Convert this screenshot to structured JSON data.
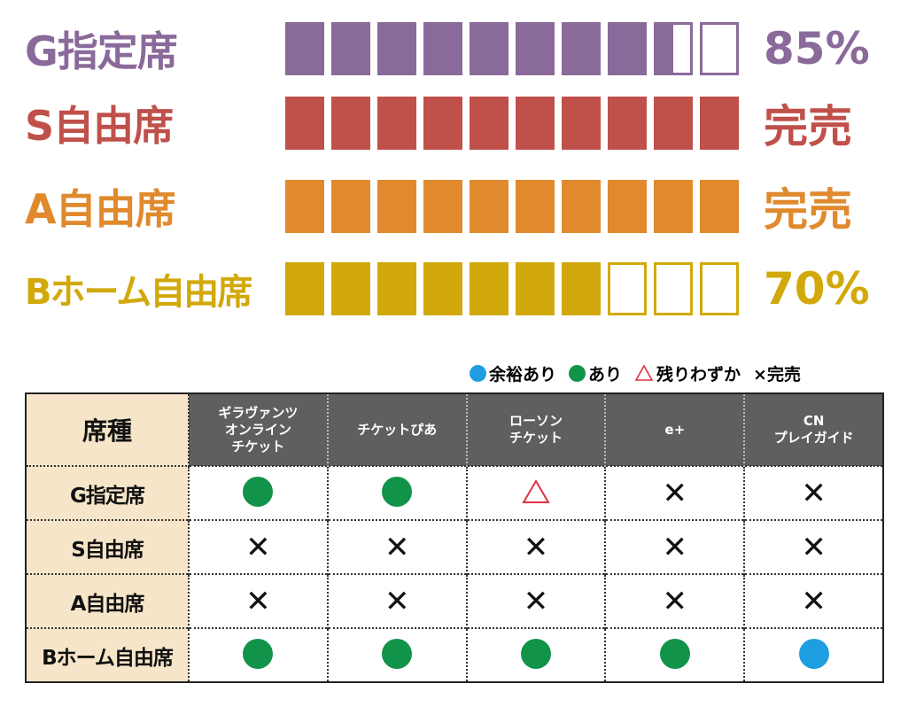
{
  "colors": {
    "g": "#8a6a9a",
    "s": "#c0504a",
    "a": "#e0892d",
    "b": "#d2a90c",
    "green": "#11934a",
    "blue": "#1e9ee0",
    "triangle": "#e0323c",
    "vendor_header_bg": "#5f5f5f",
    "seat_header_bg": "#f6e5c8"
  },
  "bars": [
    {
      "label": "G指定席",
      "color": "#8a6a9a",
      "filled": 8.5,
      "value": "85%"
    },
    {
      "label": "S自由席",
      "color": "#c0504a",
      "filled": 10,
      "value": "完売"
    },
    {
      "label": "A自由席",
      "color": "#e0892d",
      "filled": 10,
      "value": "完売"
    },
    {
      "label": "Bホーム自由席",
      "color": "#d2a90c",
      "filled": 7,
      "value": "70%"
    }
  ],
  "legend": {
    "plenty": "余裕あり",
    "available": "あり",
    "few": "残りわずか",
    "soldout": "×完売"
  },
  "table": {
    "type_header": "席種",
    "vendors": [
      "ギラヴァンツ\nオンライン\nチケット",
      "チケットぴあ",
      "ローソン\nチケット",
      "e+",
      "CN\nプレイガイド"
    ],
    "rows": [
      {
        "seat": "G指定席",
        "status": [
          "available",
          "available",
          "few",
          "soldout",
          "soldout"
        ]
      },
      {
        "seat": "S自由席",
        "status": [
          "soldout",
          "soldout",
          "soldout",
          "soldout",
          "soldout"
        ]
      },
      {
        "seat": "A自由席",
        "status": [
          "soldout",
          "soldout",
          "soldout",
          "soldout",
          "soldout"
        ]
      },
      {
        "seat": "Bホーム自由席",
        "status": [
          "available",
          "available",
          "available",
          "available",
          "plenty"
        ]
      }
    ]
  }
}
